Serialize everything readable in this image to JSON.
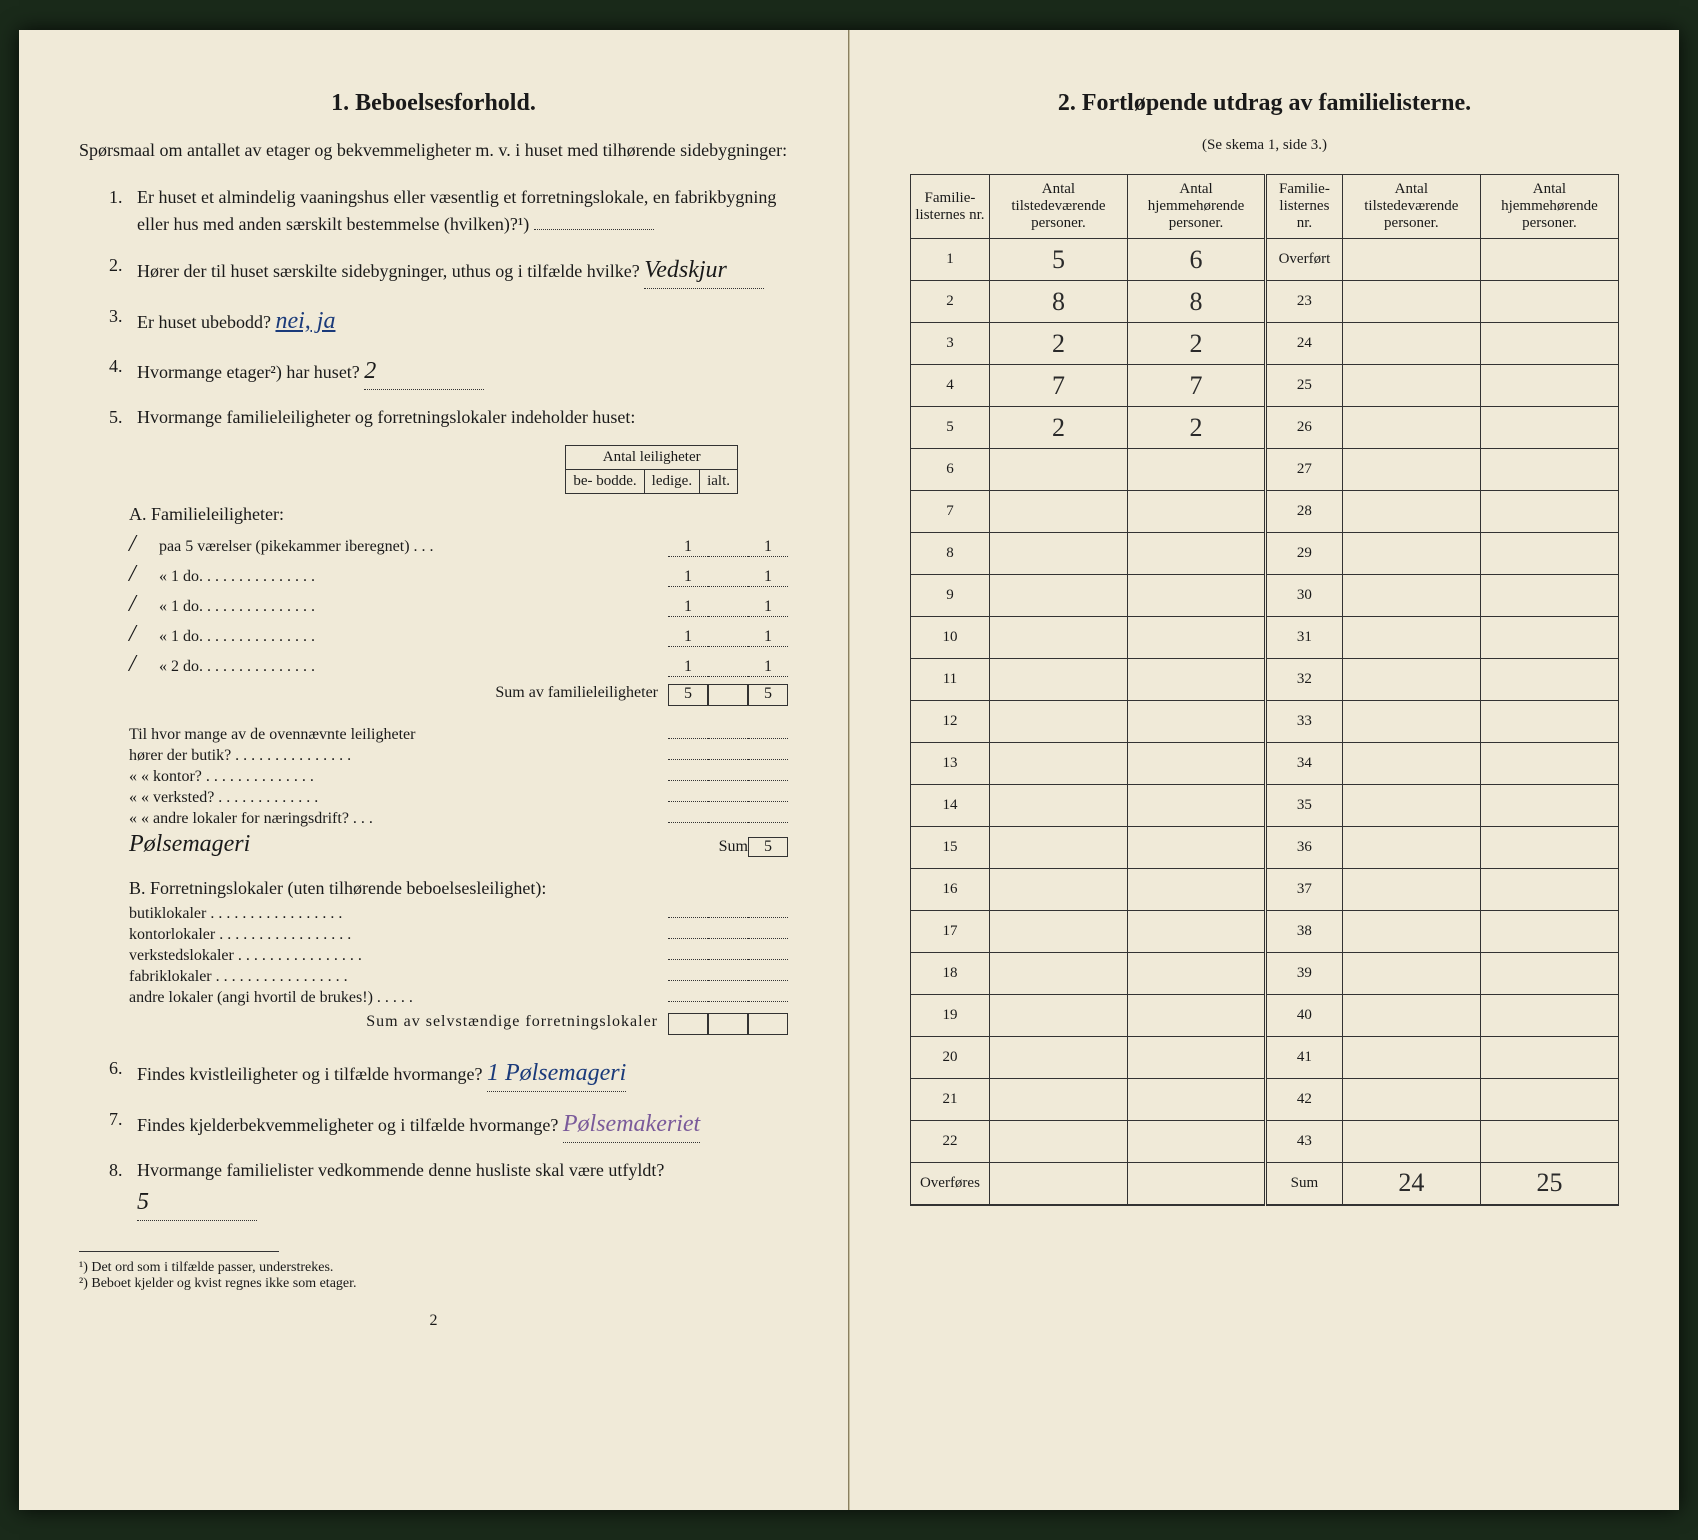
{
  "left": {
    "heading": "1.   Beboelsesforhold.",
    "intro": "Spørsmaal om antallet av etager og bekvemmeligheter m. v. i huset med tilhørende sidebygninger:",
    "questions": [
      {
        "num": "1.",
        "text": "Er huset et almindelig vaaningshus eller væsentlig et forretningslokale, en fabrikbygning eller hus med anden særskilt bestemmelse (hvilken)?¹)",
        "answer": ""
      },
      {
        "num": "2.",
        "text": "Hører der til huset særskilte sidebygninger, uthus og i tilfælde hvilke?",
        "answer": "Vedskjur"
      },
      {
        "num": "3.",
        "text": "Er huset ubebodd?",
        "answer": "nei, ja"
      },
      {
        "num": "4.",
        "text": "Hvormange etager²) har huset?",
        "answer": "2"
      },
      {
        "num": "5.",
        "text": "Hvormange familieleiligheter og forretningslokaler indeholder huset:",
        "answer": ""
      }
    ],
    "miniTableHeader": "Antal leiligheter",
    "miniCols": [
      "be-\nbodde.",
      "ledige.",
      "ialt."
    ],
    "sectionA": {
      "title": "A. Familieleiligheter:",
      "rows": [
        {
          "pre": "/",
          "label": "paa 5 værelser (pikekammer iberegnet) . . .",
          "c": [
            "1",
            "",
            "1"
          ]
        },
        {
          "pre": "/",
          "label": "«    1    do.   . . . . . . . . . . . . . .",
          "c": [
            "1",
            "",
            "1"
          ]
        },
        {
          "pre": "/",
          "label": "«    1    do.   . . . . . . . . . . . . . .",
          "c": [
            "1",
            "",
            "1"
          ]
        },
        {
          "pre": "/",
          "label": "«    1    do.   . . . . . . . . . . . . . .",
          "c": [
            "1",
            "",
            "1"
          ]
        },
        {
          "pre": "/",
          "label": "«    2    do.   . . . . . . . . . . . . . .",
          "c": [
            "1",
            "",
            "1"
          ]
        }
      ],
      "sumLabel": "Sum av familieleiligheter",
      "sumVals": [
        "5",
        "",
        "5"
      ]
    },
    "sectionMid": {
      "lines": [
        "Til hvor mange av de ovennævnte leiligheter",
        "hører der butik? . . . . . . . . . . . . . . .",
        "«       «   kontor? . . . . . . . . . . . . . .",
        "«       «   verksted? . . . . . . . . . . . . .",
        "«       «   andre lokaler for næringsdrift? . . ."
      ],
      "handwrite": "Pølsemageri",
      "sumLabel": "Sum",
      "sumVal": "5"
    },
    "sectionB": {
      "title": "B. Forretningslokaler (uten tilhørende beboelsesleilighet):",
      "rows": [
        "butiklokaler . . . . . . . . . . . . . . . . .",
        "kontorlokaler . . . . . . . . . . . . . . . . .",
        "verkstedslokaler . . . . . . . . . . . . . . . .",
        "fabriklokaler . . . . . . . . . . . . . . . . .",
        "andre lokaler (angi hvortil de brukes!) . . . . ."
      ],
      "sumLabel": "Sum av selvstændige forretningslokaler"
    },
    "q6": {
      "num": "6.",
      "text": "Findes kvistleiligheter og i tilfælde hvormange?",
      "answer": "1 Pølsemageri"
    },
    "q7": {
      "num": "7.",
      "text": "Findes kjelderbekvemmeligheter og i tilfælde hvormange?",
      "answer": "Pølsemakeriet"
    },
    "q8": {
      "num": "8.",
      "text": "Hvormange familielister vedkommende denne husliste skal være utfyldt?",
      "answer": "5"
    },
    "footnotes": [
      "¹) Det ord som i tilfælde passer, understrekes.",
      "²) Beboet kjelder og kvist regnes ikke som etager."
    ],
    "pageNum": "2"
  },
  "right": {
    "heading": "2.   Fortløpende utdrag av familielisterne.",
    "subheading": "(Se skema 1, side 3.)",
    "cols": [
      "Familie-\nlisternes\nnr.",
      "Antal\ntilstedeværende\npersoner.",
      "Antal\nhjemmehørende\npersoner.",
      "Familie-\nlisternes\nnr.",
      "Antal\ntilstedeværende\npersoner.",
      "Antal\nhjemmehørende\npersoner."
    ],
    "leftRows": [
      {
        "n": "1",
        "a": "5",
        "b": "6"
      },
      {
        "n": "2",
        "a": "8",
        "b": "8"
      },
      {
        "n": "3",
        "a": "2",
        "b": "2"
      },
      {
        "n": "4",
        "a": "7",
        "b": "7"
      },
      {
        "n": "5",
        "a": "2",
        "b": "2"
      },
      {
        "n": "6",
        "a": "",
        "b": ""
      },
      {
        "n": "7",
        "a": "",
        "b": ""
      },
      {
        "n": "8",
        "a": "",
        "b": ""
      },
      {
        "n": "9",
        "a": "",
        "b": ""
      },
      {
        "n": "10",
        "a": "",
        "b": ""
      },
      {
        "n": "11",
        "a": "",
        "b": ""
      },
      {
        "n": "12",
        "a": "",
        "b": ""
      },
      {
        "n": "13",
        "a": "",
        "b": ""
      },
      {
        "n": "14",
        "a": "",
        "b": ""
      },
      {
        "n": "15",
        "a": "",
        "b": ""
      },
      {
        "n": "16",
        "a": "",
        "b": ""
      },
      {
        "n": "17",
        "a": "",
        "b": ""
      },
      {
        "n": "18",
        "a": "",
        "b": ""
      },
      {
        "n": "19",
        "a": "",
        "b": ""
      },
      {
        "n": "20",
        "a": "",
        "b": ""
      },
      {
        "n": "21",
        "a": "",
        "b": ""
      },
      {
        "n": "22",
        "a": "",
        "b": ""
      }
    ],
    "rightRows": [
      {
        "n": "Overført",
        "a": "",
        "b": ""
      },
      {
        "n": "23",
        "a": "",
        "b": ""
      },
      {
        "n": "24",
        "a": "",
        "b": ""
      },
      {
        "n": "25",
        "a": "",
        "b": ""
      },
      {
        "n": "26",
        "a": "",
        "b": ""
      },
      {
        "n": "27",
        "a": "",
        "b": ""
      },
      {
        "n": "28",
        "a": "",
        "b": ""
      },
      {
        "n": "29",
        "a": "",
        "b": ""
      },
      {
        "n": "30",
        "a": "",
        "b": ""
      },
      {
        "n": "31",
        "a": "",
        "b": ""
      },
      {
        "n": "32",
        "a": "",
        "b": ""
      },
      {
        "n": "33",
        "a": "",
        "b": ""
      },
      {
        "n": "34",
        "a": "",
        "b": ""
      },
      {
        "n": "35",
        "a": "",
        "b": ""
      },
      {
        "n": "36",
        "a": "",
        "b": ""
      },
      {
        "n": "37",
        "a": "",
        "b": ""
      },
      {
        "n": "38",
        "a": "",
        "b": ""
      },
      {
        "n": "39",
        "a": "",
        "b": ""
      },
      {
        "n": "40",
        "a": "",
        "b": ""
      },
      {
        "n": "41",
        "a": "",
        "b": ""
      },
      {
        "n": "42",
        "a": "",
        "b": ""
      },
      {
        "n": "43",
        "a": "",
        "b": ""
      }
    ],
    "lastLeft": "Overføres",
    "lastRight": "Sum",
    "sumA": "24",
    "sumB": "25"
  }
}
